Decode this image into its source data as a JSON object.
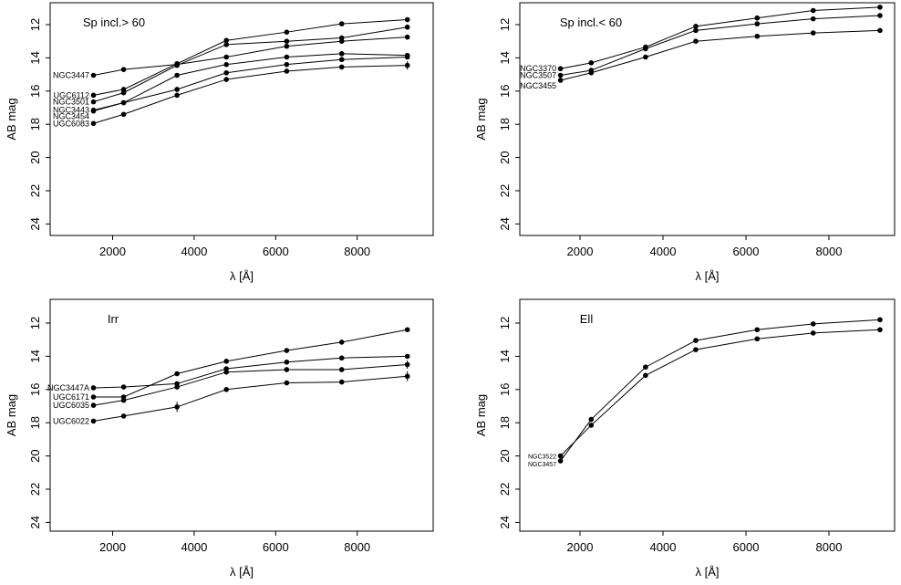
{
  "figure": {
    "background": "#ffffff",
    "foreground": "#000000",
    "xlabel": "λ [Å]",
    "ylabel": "AB mag",
    "x_ticks": [
      2000,
      4000,
      6000,
      8000
    ],
    "y_ticks": [
      12,
      14,
      16,
      18,
      20,
      22,
      24
    ]
  },
  "chart_data": [
    {
      "type": "line",
      "position": "top-left",
      "title": "Sp incl.> 60",
      "xlabel": "λ [Å]",
      "ylabel": "AB mag",
      "x": [
        1530,
        2270,
        3580,
        4790,
        6270,
        7620,
        9230
      ],
      "x_range": [
        470,
        9910
      ],
      "y_range": [
        24.6,
        10.7
      ],
      "y_axis_inverted": true,
      "grid": false,
      "series": [
        {
          "name": "NGC3447",
          "values": [
            15.05,
            14.7,
            14.4,
            13.95,
            13.3,
            13.0,
            12.75
          ]
        },
        {
          "name": "UGC6112",
          "values": [
            16.25,
            15.9,
            14.35,
            12.95,
            12.45,
            11.95,
            11.7
          ]
        },
        {
          "name": "NGC3501",
          "values": [
            16.65,
            16.1,
            14.45,
            13.2,
            13.0,
            12.8,
            12.15
          ]
        },
        {
          "name": "NGC3443",
          "values": [
            17.15,
            16.7,
            15.05,
            14.4,
            13.95,
            13.75,
            13.85
          ]
        },
        {
          "name": "NGC3454",
          "values": [
            17.2,
            16.7,
            15.9,
            14.9,
            14.4,
            14.1,
            13.95
          ],
          "label_dy": 6
        },
        {
          "name": "UGC6083",
          "values": [
            17.95,
            17.4,
            16.25,
            15.3,
            14.8,
            14.55,
            14.45
          ]
        }
      ],
      "error_bars": [
        {
          "series": "NGC3443",
          "x": 9230,
          "plus_minus": 0.15
        },
        {
          "series": "UGC6083",
          "x": 9230,
          "plus_minus": 0.25
        }
      ]
    },
    {
      "type": "line",
      "position": "top-right",
      "title": "Sp incl.< 60",
      "xlabel": "λ [Å]",
      "ylabel": "AB mag",
      "x": [
        1530,
        2270,
        3580,
        4790,
        6270,
        7620,
        9230
      ],
      "x_range": [
        530,
        9670
      ],
      "y_range": [
        24.6,
        10.7
      ],
      "y_axis_inverted": true,
      "grid": false,
      "series": [
        {
          "name": "NGC3370",
          "values": [
            14.65,
            14.3,
            13.35,
            12.1,
            11.6,
            11.15,
            10.95
          ]
        },
        {
          "name": "NGC3507",
          "values": [
            15.05,
            14.75,
            13.45,
            12.35,
            11.95,
            11.65,
            11.45
          ]
        },
        {
          "name": "NGC3455",
          "values": [
            15.35,
            14.9,
            13.95,
            13.0,
            12.7,
            12.5,
            12.35
          ],
          "label_dy": 6
        }
      ],
      "error_bars": []
    },
    {
      "type": "line",
      "position": "bottom-left",
      "title": "Irr",
      "xlabel": "λ [Å]",
      "ylabel": "AB mag",
      "x": [
        1530,
        2270,
        3580,
        4790,
        6270,
        7620,
        9230
      ],
      "x_range": [
        470,
        9910
      ],
      "y_range": [
        24.6,
        10.7
      ],
      "y_axis_inverted": true,
      "grid": false,
      "series": [
        {
          "name": "NGC3447A",
          "values": [
            15.9,
            15.85,
            15.65,
            14.75,
            14.35,
            14.1,
            14.0
          ]
        },
        {
          "name": "UGC6171",
          "values": [
            16.45,
            16.45,
            15.05,
            14.3,
            13.65,
            13.15,
            12.4
          ]
        },
        {
          "name": "UGC6035",
          "values": [
            16.95,
            16.65,
            15.85,
            14.95,
            14.8,
            14.8,
            14.5
          ]
        },
        {
          "name": "UGC6022",
          "values": [
            17.9,
            17.6,
            17.05,
            16.0,
            15.6,
            15.55,
            15.2
          ]
        }
      ],
      "error_bars": [
        {
          "series": "UGC6022",
          "x": 3580,
          "plus_minus": 0.3
        },
        {
          "series": "UGC6035",
          "x": 9230,
          "plus_minus": 0.25
        },
        {
          "series": "UGC6022",
          "x": 9230,
          "plus_minus": 0.3
        }
      ]
    },
    {
      "type": "line",
      "position": "bottom-right",
      "title": "Ell",
      "xlabel": "λ [Å]",
      "ylabel": "AB mag",
      "x": [
        1530,
        2270,
        3580,
        4790,
        6270,
        7620,
        9230
      ],
      "x_range": [
        530,
        9670
      ],
      "y_range": [
        24.6,
        10.7
      ],
      "y_axis_inverted": true,
      "grid": false,
      "series": [
        {
          "name": "NGC3522",
          "values": [
            20.0,
            18.15,
            15.15,
            13.6,
            12.95,
            12.6,
            12.4
          ]
        },
        {
          "name": "NGC3457",
          "values": [
            20.3,
            17.8,
            14.65,
            13.05,
            12.4,
            12.05,
            11.8
          ],
          "label_dy": 3
        }
      ],
      "error_bars": []
    }
  ]
}
